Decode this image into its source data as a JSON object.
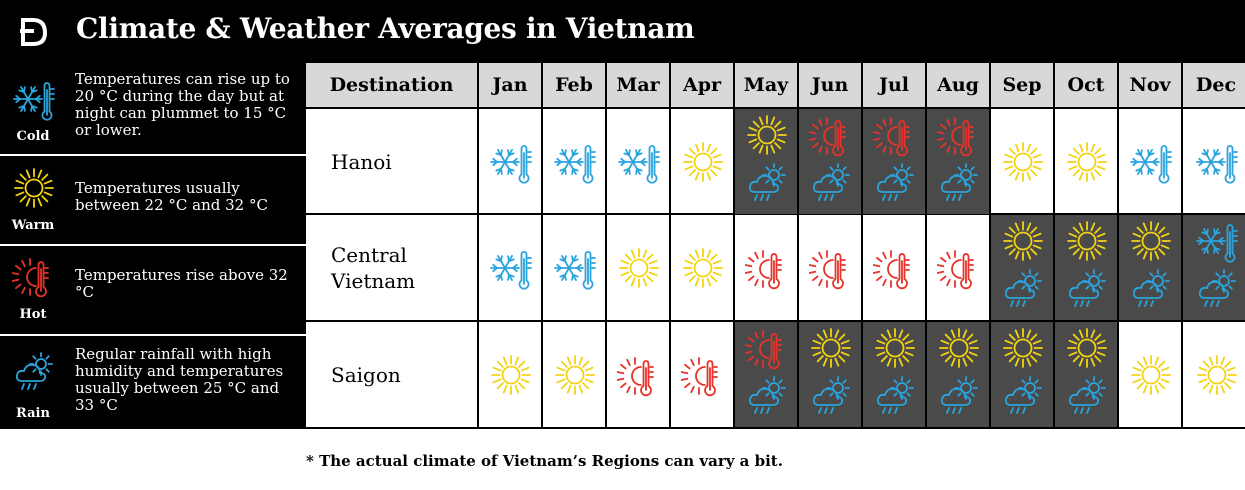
{
  "header": {
    "title": "Climate & Weather Averages in Vietnam",
    "logo": "D"
  },
  "legend": [
    {
      "key": "cold",
      "icon": "snowflake-thermometer-icon",
      "label": "Cold",
      "text": "Temperatures can rise up to 20 °C during the day but at night can plummet to 15 °C or lower."
    },
    {
      "key": "warm",
      "icon": "sun-icon",
      "label": "Warm",
      "text": "Temperatures usually between 22 °C and 32 °C"
    },
    {
      "key": "hot",
      "icon": "sun-thermometer-icon",
      "label": "Hot",
      "text": "Temperatures rise above 32 °C"
    },
    {
      "key": "rain",
      "icon": "rain-cloud-icon",
      "label": "Rain",
      "text": "Regular rainfall with high humidity and temperatures usually between 25 °C and 33 °C"
    }
  ],
  "table": {
    "destination_header": "Destination",
    "months": [
      "Jan",
      "Feb",
      "Mar",
      "Apr",
      "May",
      "Jun",
      "Jul",
      "Aug",
      "Sep",
      "Oct",
      "Nov",
      "Dec"
    ],
    "rows": [
      {
        "destination": "Hanoi",
        "cells": [
          [
            "cold"
          ],
          [
            "cold"
          ],
          [
            "cold"
          ],
          [
            "warm"
          ],
          [
            "warm",
            "rain"
          ],
          [
            "hot",
            "rain"
          ],
          [
            "hot",
            "rain"
          ],
          [
            "hot",
            "rain"
          ],
          [
            "warm"
          ],
          [
            "warm"
          ],
          [
            "cold"
          ],
          [
            "cold"
          ]
        ]
      },
      {
        "destination": "Central Vietnam",
        "cells": [
          [
            "cold"
          ],
          [
            "cold"
          ],
          [
            "warm"
          ],
          [
            "warm"
          ],
          [
            "hot"
          ],
          [
            "hot"
          ],
          [
            "hot"
          ],
          [
            "hot"
          ],
          [
            "warm",
            "rain"
          ],
          [
            "warm",
            "rain"
          ],
          [
            "warm",
            "rain"
          ],
          [
            "cold",
            "rain"
          ]
        ]
      },
      {
        "destination": "Saigon",
        "cells": [
          [
            "warm"
          ],
          [
            "warm"
          ],
          [
            "hot"
          ],
          [
            "hot"
          ],
          [
            "hot",
            "rain"
          ],
          [
            "warm",
            "rain"
          ],
          [
            "warm",
            "rain"
          ],
          [
            "warm",
            "rain"
          ],
          [
            "warm",
            "rain"
          ],
          [
            "warm",
            "rain"
          ],
          [
            "warm"
          ],
          [
            "warm"
          ]
        ]
      }
    ]
  },
  "colors": {
    "cold": "#2aa4dc",
    "warm": "#f5d311",
    "hot": "#e5332a",
    "rain": "#2aa4dc",
    "rainy_cell": "#4a4a4a",
    "header_bg": "#d8d8d8"
  },
  "footnote": "* The actual climate of Vietnam’s Regions can vary a bit."
}
